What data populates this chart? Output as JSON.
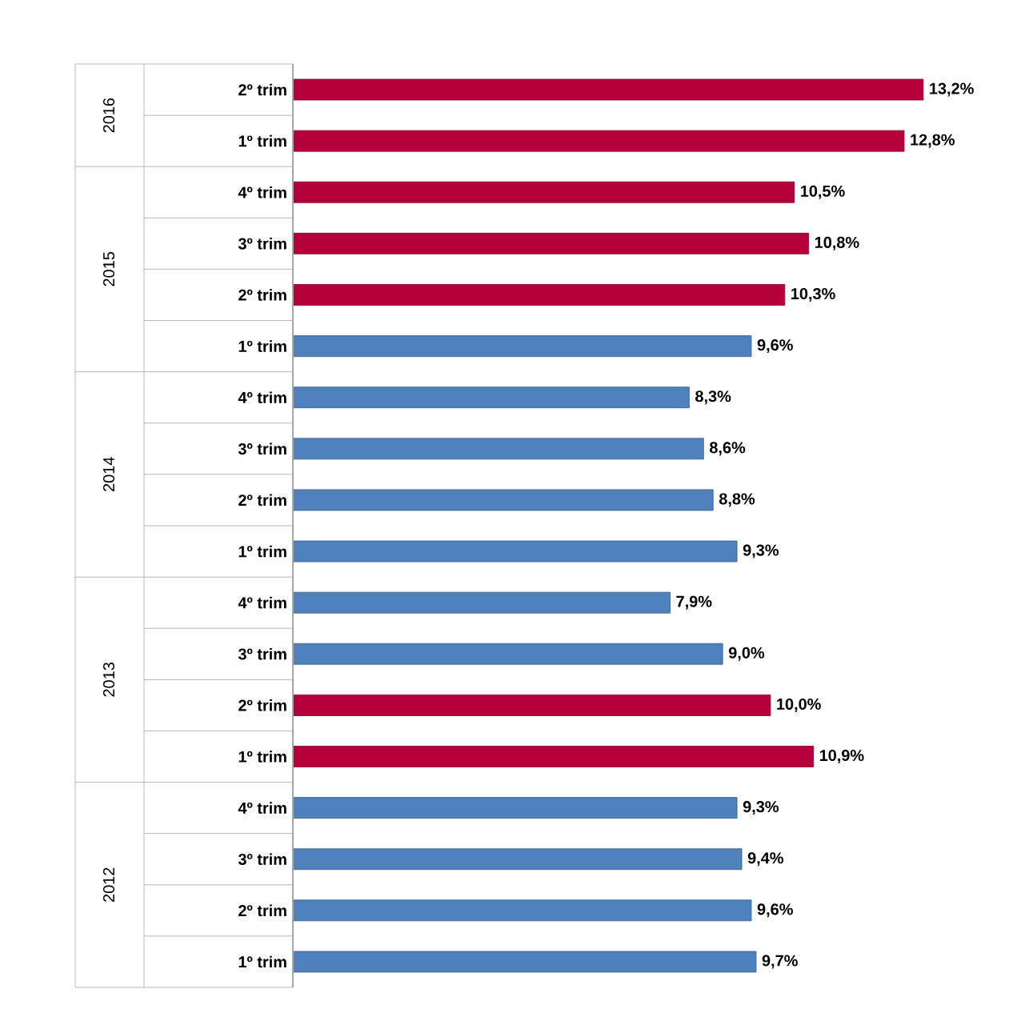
{
  "chart_data": {
    "type": "bar",
    "orientation": "horizontal",
    "categories": [
      "2º trim",
      "1º trim",
      "4º trim",
      "3º trim",
      "2º trim",
      "1º trim",
      "4º trim",
      "3º trim",
      "2º trim",
      "1º trim",
      "4º trim",
      "3º trim",
      "2º trim",
      "1º trim",
      "4º trim",
      "3º trim",
      "2º trim",
      "1º trim"
    ],
    "values": [
      13.2,
      12.8,
      10.5,
      10.8,
      10.3,
      9.6,
      8.3,
      8.6,
      8.8,
      9.3,
      7.9,
      9.0,
      10.0,
      10.9,
      9.3,
      9.4,
      9.6,
      9.7
    ],
    "value_labels": [
      "13,2%",
      "12,8%",
      "10,5%",
      "10,8%",
      "10,3%",
      "9,6%",
      "8,3%",
      "8,6%",
      "8,8%",
      "9,3%",
      "7,9%",
      "9,0%",
      "10,0%",
      "10,9%",
      "9,3%",
      "9,4%",
      "9,6%",
      "9,7%"
    ],
    "colors": [
      "#b5003a",
      "#b5003a",
      "#b5003a",
      "#b5003a",
      "#b5003a",
      "#4f81bd",
      "#4f81bd",
      "#4f81bd",
      "#4f81bd",
      "#4f81bd",
      "#4f81bd",
      "#4f81bd",
      "#b5003a",
      "#b5003a",
      "#4f81bd",
      "#4f81bd",
      "#4f81bd",
      "#4f81bd"
    ],
    "annotations": [
      "2016",
      "2015",
      "2014",
      "2013",
      "2012"
    ]
  }
}
